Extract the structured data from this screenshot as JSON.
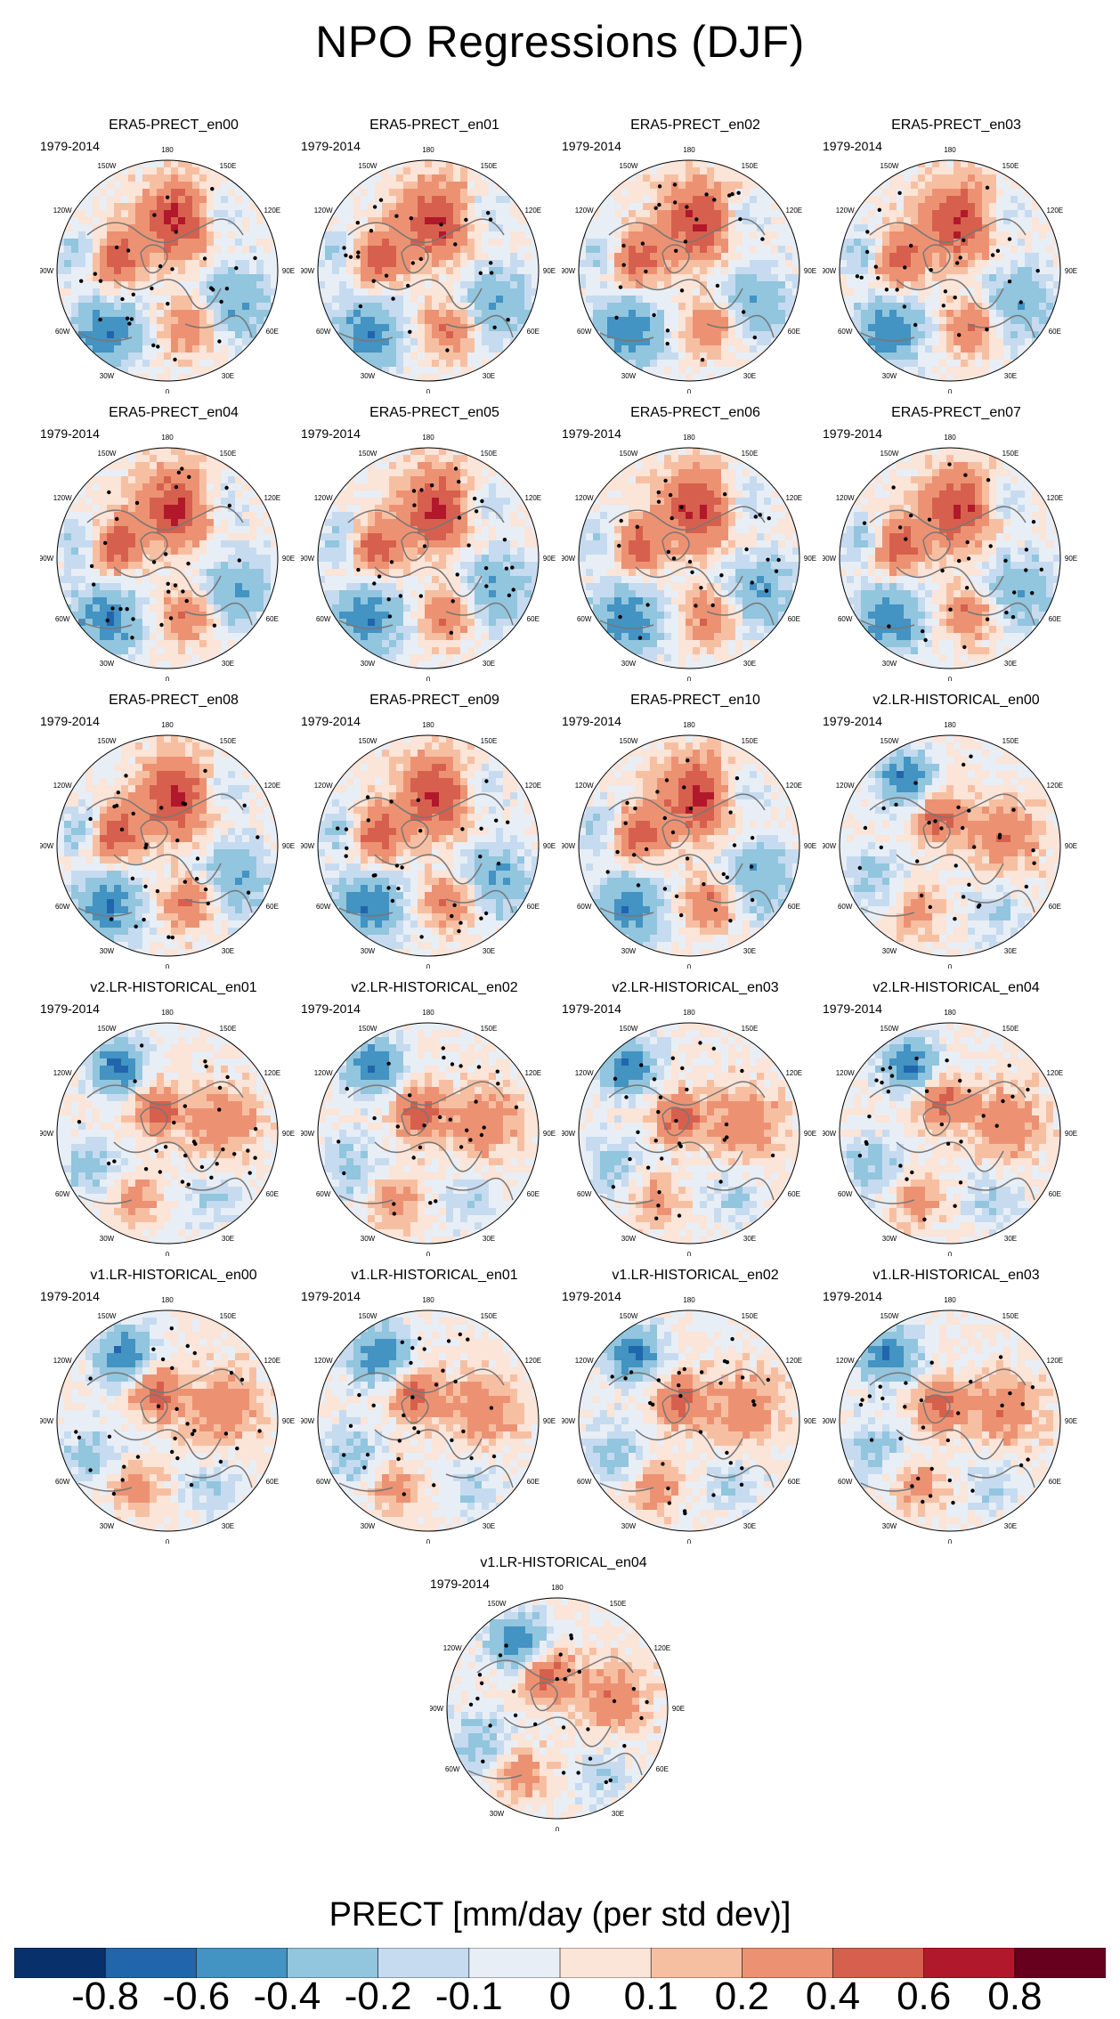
{
  "title": "NPO Regressions (DJF)",
  "period_label": "1979-2014",
  "longitude_labels": [
    "180",
    "150E",
    "120E",
    "90E",
    "60E",
    "30E",
    "0",
    "30W",
    "60W",
    "90W",
    "120W",
    "150W"
  ],
  "panels": [
    {
      "title": "ERA5-PRECT_en00",
      "pattern": "era5"
    },
    {
      "title": "ERA5-PRECT_en01",
      "pattern": "era5"
    },
    {
      "title": "ERA5-PRECT_en02",
      "pattern": "era5"
    },
    {
      "title": "ERA5-PRECT_en03",
      "pattern": "era5"
    },
    {
      "title": "ERA5-PRECT_en04",
      "pattern": "era5"
    },
    {
      "title": "ERA5-PRECT_en05",
      "pattern": "era5"
    },
    {
      "title": "ERA5-PRECT_en06",
      "pattern": "era5"
    },
    {
      "title": "ERA5-PRECT_en07",
      "pattern": "era5"
    },
    {
      "title": "ERA5-PRECT_en08",
      "pattern": "era5"
    },
    {
      "title": "ERA5-PRECT_en09",
      "pattern": "era5"
    },
    {
      "title": "ERA5-PRECT_en10",
      "pattern": "era5"
    },
    {
      "title": "v2.LR-HISTORICAL_en00",
      "pattern": "model"
    },
    {
      "title": "v2.LR-HISTORICAL_en01",
      "pattern": "model"
    },
    {
      "title": "v2.LR-HISTORICAL_en02",
      "pattern": "model"
    },
    {
      "title": "v2.LR-HISTORICAL_en03",
      "pattern": "model"
    },
    {
      "title": "v2.LR-HISTORICAL_en04",
      "pattern": "model"
    },
    {
      "title": "v1.LR-HISTORICAL_en00",
      "pattern": "model"
    },
    {
      "title": "v1.LR-HISTORICAL_en01",
      "pattern": "model"
    },
    {
      "title": "v1.LR-HISTORICAL_en02",
      "pattern": "model"
    },
    {
      "title": "v1.LR-HISTORICAL_en03",
      "pattern": "model"
    },
    {
      "title": "v1.LR-HISTORICAL_en04",
      "pattern": "model"
    }
  ],
  "colorbar": {
    "title": "PRECT [mm/day (per std dev)]",
    "colors": [
      "#08306b",
      "#2166ac",
      "#4393c3",
      "#92c5de",
      "#c6dbef",
      "#e8eef5",
      "#fbe4d8",
      "#f7bfa2",
      "#ec9273",
      "#d6604d",
      "#b2182b",
      "#67001f"
    ],
    "labels": [
      "-0.8",
      "-0.6",
      "-0.4",
      "-0.2",
      "-0.1",
      "0",
      "0.1",
      "0.2",
      "0.4",
      "0.6",
      "0.8"
    ]
  }
}
